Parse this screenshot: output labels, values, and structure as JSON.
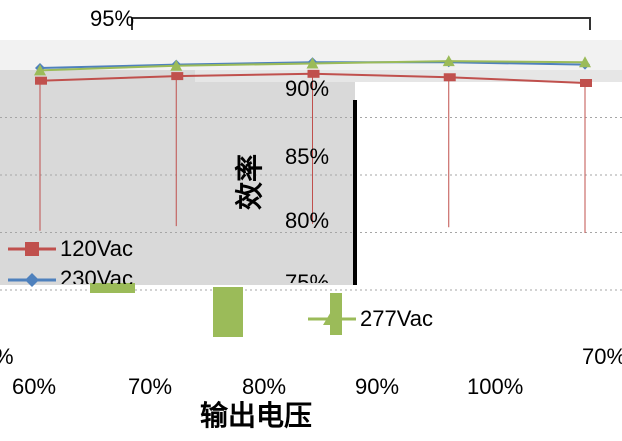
{
  "chart_data": {
    "type": "line",
    "title": "",
    "xlabel": "输出电压",
    "ylabel": "效率",
    "x_tick_labels": [
      "60%",
      "70%",
      "80%",
      "90%",
      "100%"
    ],
    "y_tick_labels": [
      "95%",
      "90%",
      "85%",
      "80%",
      "75%"
    ],
    "partial_labels": {
      "left_edge": "%",
      "right_edge": "70%"
    },
    "ylim": [
      75,
      95
    ],
    "grid": true,
    "legend_position": "left",
    "series": [
      {
        "name": "120Vac",
        "color": "#c0504d",
        "marker": "square",
        "x": [
          60,
          70,
          80,
          90,
          100
        ],
        "y": [
          93.2,
          93.6,
          93.8,
          93.5,
          93.0
        ]
      },
      {
        "name": "230Vac",
        "color": "#4f81bd",
        "marker": "diamond",
        "x": [
          60,
          70,
          80,
          90,
          100
        ],
        "y": [
          94.3,
          94.6,
          94.8,
          94.8,
          94.6
        ]
      },
      {
        "name": "277Vac",
        "color": "#9bbb59",
        "marker": "triangle",
        "x": [
          60,
          70,
          80,
          90,
          100
        ],
        "y": [
          94.1,
          94.5,
          94.7,
          94.9,
          94.8
        ]
      }
    ],
    "legend_entries": [
      {
        "label": "120Vac"
      },
      {
        "label": "230Vac"
      },
      {
        "label": "277Vac"
      }
    ]
  }
}
